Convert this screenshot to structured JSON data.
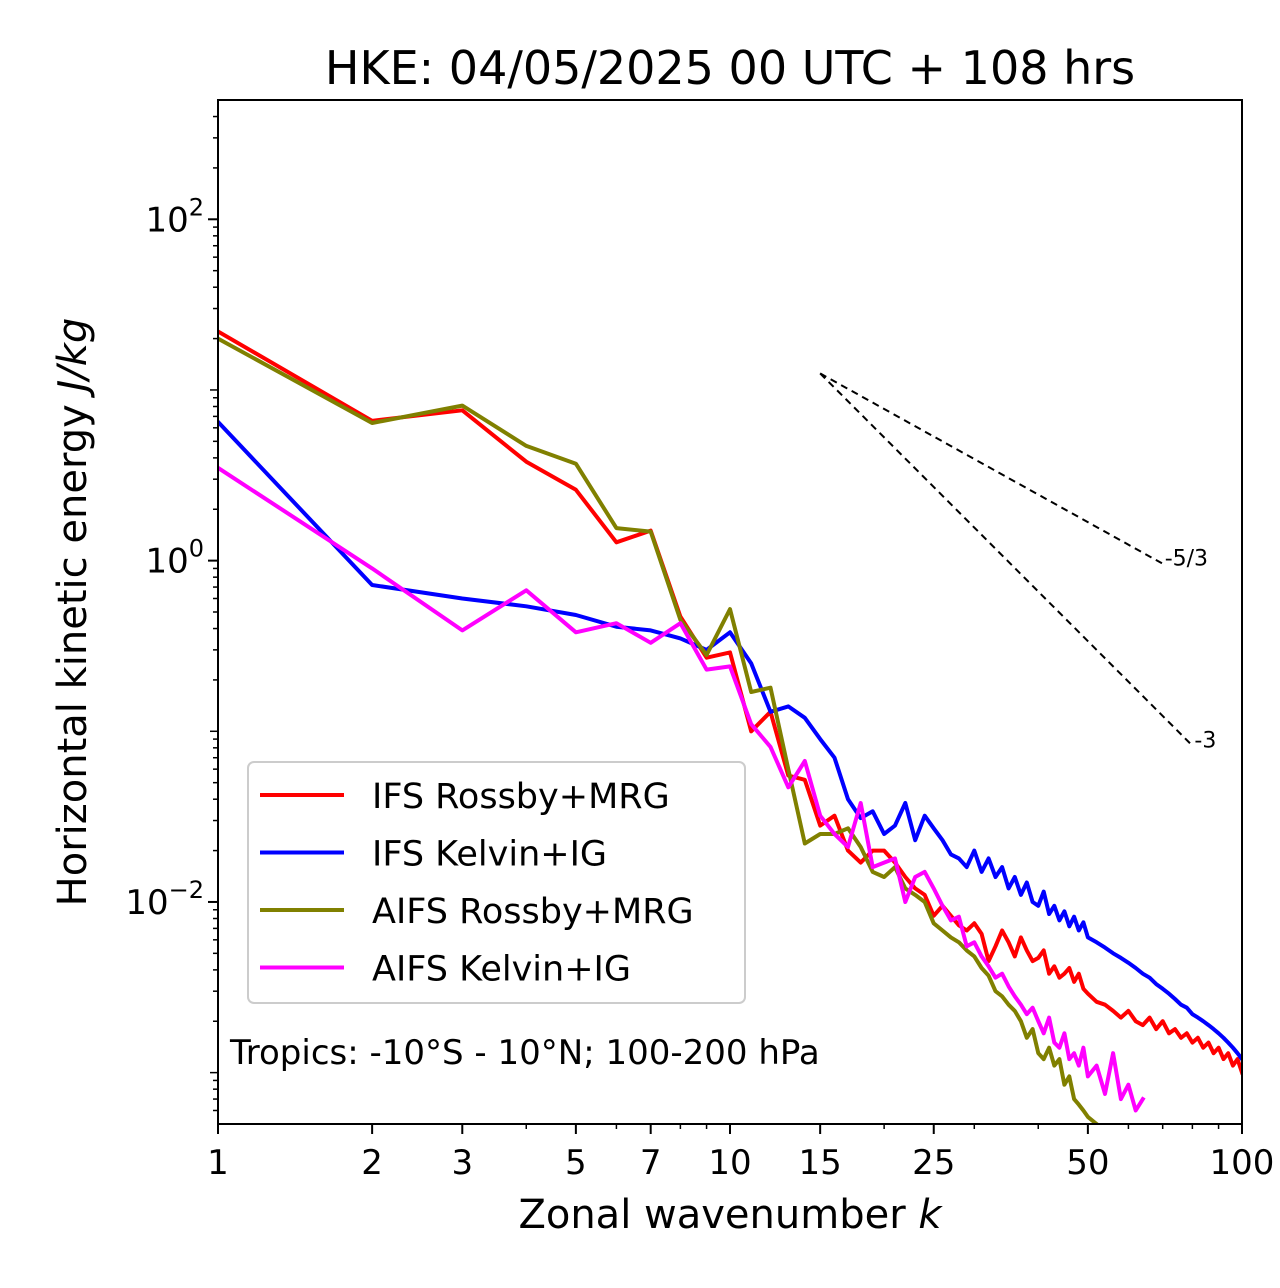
{
  "chart_data": {
    "type": "line",
    "title": "HKE: 04/05/2025 00 UTC + 108 hrs",
    "xlabel_text": "Zonal wavenumber ",
    "xlabel_italic": "k",
    "ylabel_text": "Horizontal kinetic energy ",
    "ylabel_italic": "J/kg",
    "x_scale": "log",
    "y_scale": "log",
    "xlim": [
      1,
      100
    ],
    "ylim": [
      0.0005,
      500
    ],
    "x_ticks": [
      1,
      2,
      3,
      5,
      7,
      10,
      15,
      25,
      50,
      100
    ],
    "x_tick_labels": [
      "1",
      "2",
      "3",
      "5",
      "7",
      "10",
      "15",
      "25",
      "50",
      "100"
    ],
    "y_ticks": [
      {
        "value": 100,
        "base": "10",
        "exp": "2"
      },
      {
        "value": 1,
        "base": "10",
        "exp": "0"
      },
      {
        "value": 0.01,
        "base": "10",
        "exp": "−2"
      }
    ],
    "grid": false,
    "legend_position": "lower-left",
    "annotation": "Tropics: -10°S - 10°N; 100-200 hPa",
    "reference_lines": [
      {
        "label": "-5/3",
        "slope": -1.6667,
        "x": [
          15,
          70
        ],
        "y_start": 12.5
      },
      {
        "label": "-3",
        "slope": -3,
        "x": [
          15,
          80
        ],
        "y_start": 12.5
      }
    ],
    "series": [
      {
        "name": "IFS Rossby+MRG",
        "color": "#ff0000",
        "x": [
          1,
          2,
          3,
          4,
          5,
          6,
          7,
          8,
          9,
          10,
          11,
          12,
          13,
          14,
          15,
          16,
          17,
          18,
          19,
          20,
          21,
          22,
          23,
          24,
          25,
          26,
          27,
          28,
          29,
          30,
          31,
          32,
          33,
          34,
          35,
          36,
          37,
          38,
          39,
          40,
          41,
          42,
          43,
          44,
          45,
          46,
          47,
          48,
          49,
          50,
          52,
          54,
          56,
          58,
          60,
          62,
          64,
          66,
          68,
          70,
          72,
          74,
          76,
          78,
          80,
          82,
          84,
          86,
          88,
          90,
          92,
          94,
          96,
          98,
          100
        ],
        "y": [
          22,
          6.6,
          7.6,
          3.8,
          2.6,
          1.28,
          1.5,
          0.47,
          0.27,
          0.29,
          0.1,
          0.13,
          0.055,
          0.052,
          0.028,
          0.032,
          0.02,
          0.017,
          0.02,
          0.02,
          0.017,
          0.014,
          0.012,
          0.011,
          0.0083,
          0.0095,
          0.0083,
          0.0073,
          0.0068,
          0.0075,
          0.0065,
          0.0045,
          0.0055,
          0.0068,
          0.0058,
          0.0048,
          0.0062,
          0.0052,
          0.0045,
          0.0047,
          0.0052,
          0.0038,
          0.0042,
          0.0036,
          0.0038,
          0.0041,
          0.0034,
          0.0038,
          0.0031,
          0.0029,
          0.0026,
          0.0025,
          0.0023,
          0.0021,
          0.0023,
          0.002,
          0.0019,
          0.0021,
          0.0018,
          0.002,
          0.0017,
          0.0018,
          0.0016,
          0.0017,
          0.0015,
          0.0016,
          0.0014,
          0.0015,
          0.0013,
          0.0014,
          0.0012,
          0.0013,
          0.0011,
          0.0012,
          0.001
        ]
      },
      {
        "name": "IFS Kelvin+IG",
        "color": "#0000ff",
        "x": [
          1,
          2,
          3,
          4,
          5,
          6,
          7,
          8,
          9,
          10,
          11,
          12,
          13,
          14,
          15,
          16,
          17,
          18,
          19,
          20,
          21,
          22,
          23,
          24,
          25,
          26,
          27,
          28,
          29,
          30,
          31,
          32,
          33,
          34,
          35,
          36,
          37,
          38,
          39,
          40,
          41,
          42,
          43,
          44,
          45,
          46,
          47,
          48,
          49,
          50,
          52,
          54,
          56,
          58,
          60,
          62,
          64,
          66,
          68,
          70,
          72,
          74,
          76,
          78,
          80,
          82,
          84,
          86,
          88,
          90,
          92,
          94,
          96,
          98,
          100
        ],
        "y": [
          6.5,
          0.72,
          0.6,
          0.54,
          0.48,
          0.41,
          0.39,
          0.35,
          0.3,
          0.38,
          0.25,
          0.13,
          0.14,
          0.12,
          0.09,
          0.07,
          0.04,
          0.031,
          0.034,
          0.025,
          0.028,
          0.038,
          0.023,
          0.032,
          0.027,
          0.023,
          0.019,
          0.018,
          0.016,
          0.02,
          0.015,
          0.018,
          0.014,
          0.016,
          0.012,
          0.014,
          0.011,
          0.013,
          0.01,
          0.0095,
          0.0115,
          0.0085,
          0.0095,
          0.0078,
          0.0088,
          0.0072,
          0.0082,
          0.0068,
          0.0076,
          0.0062,
          0.0058,
          0.0054,
          0.005,
          0.0047,
          0.0044,
          0.0041,
          0.0038,
          0.0036,
          0.0033,
          0.0031,
          0.0029,
          0.0027,
          0.0025,
          0.0024,
          0.0022,
          0.0021,
          0.002,
          0.0019,
          0.0018,
          0.0017,
          0.0016,
          0.0015,
          0.0014,
          0.0013,
          0.0012
        ]
      },
      {
        "name": "AIFS Rossby+MRG",
        "color": "#808000",
        "x": [
          1,
          2,
          3,
          4,
          5,
          6,
          7,
          8,
          9,
          10,
          11,
          12,
          13,
          14,
          15,
          16,
          17,
          18,
          19,
          20,
          21,
          22,
          23,
          24,
          25,
          26,
          27,
          28,
          29,
          30,
          31,
          32,
          33,
          34,
          35,
          36,
          37,
          38,
          39,
          40,
          41,
          42,
          43,
          44,
          45,
          46,
          47,
          48,
          49,
          50,
          52,
          54,
          56,
          58
        ],
        "y": [
          20,
          6.4,
          8.1,
          4.7,
          3.7,
          1.55,
          1.48,
          0.45,
          0.28,
          0.52,
          0.17,
          0.18,
          0.06,
          0.022,
          0.025,
          0.025,
          0.027,
          0.021,
          0.015,
          0.014,
          0.016,
          0.012,
          0.011,
          0.01,
          0.0075,
          0.0068,
          0.0062,
          0.0058,
          0.0052,
          0.0048,
          0.0041,
          0.0037,
          0.003,
          0.0028,
          0.0025,
          0.0023,
          0.002,
          0.0016,
          0.0018,
          0.0013,
          0.0012,
          0.0014,
          0.0011,
          0.0012,
          0.00085,
          0.00095,
          0.0007,
          0.00065,
          0.0006,
          0.00055,
          0.0005,
          0.00045,
          0.0004,
          0.00035
        ]
      },
      {
        "name": "AIFS Kelvin+IG",
        "color": "#ff00ff",
        "x": [
          1,
          2,
          3,
          4,
          5,
          6,
          7,
          8,
          9,
          10,
          11,
          12,
          13,
          14,
          15,
          16,
          17,
          18,
          19,
          20,
          21,
          22,
          23,
          24,
          25,
          26,
          27,
          28,
          29,
          30,
          31,
          32,
          33,
          34,
          35,
          36,
          37,
          38,
          39,
          40,
          41,
          42,
          43,
          44,
          45,
          46,
          47,
          48,
          49,
          50,
          52,
          54,
          56,
          58,
          60,
          62,
          64
        ],
        "y": [
          3.5,
          0.9,
          0.39,
          0.67,
          0.38,
          0.43,
          0.33,
          0.43,
          0.23,
          0.24,
          0.11,
          0.081,
          0.047,
          0.067,
          0.032,
          0.025,
          0.021,
          0.038,
          0.016,
          0.017,
          0.018,
          0.01,
          0.014,
          0.015,
          0.012,
          0.0095,
          0.0078,
          0.0082,
          0.0055,
          0.0058,
          0.0048,
          0.0042,
          0.0036,
          0.0038,
          0.0032,
          0.0028,
          0.0025,
          0.0022,
          0.0024,
          0.002,
          0.0017,
          0.0021,
          0.0015,
          0.0014,
          0.0017,
          0.0012,
          0.0013,
          0.0011,
          0.0014,
          0.00095,
          0.0011,
          0.00075,
          0.0013,
          0.0007,
          0.00085,
          0.0006,
          0.0007
        ]
      }
    ]
  }
}
